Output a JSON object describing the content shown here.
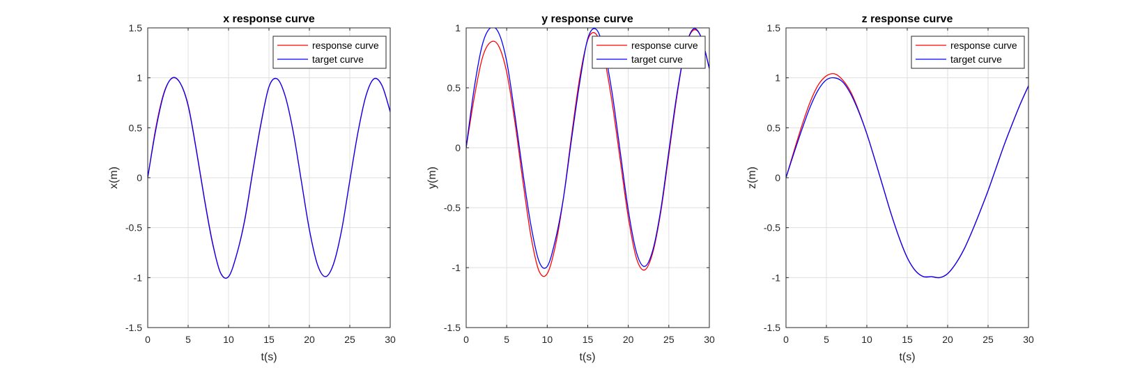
{
  "chart_data": [
    {
      "type": "line",
      "title": "x response curve",
      "xlabel": "t(s)",
      "ylabel": "x(m)",
      "xlim": [
        0,
        30
      ],
      "ylim": [
        -1.5,
        1.5
      ],
      "xticks": [
        0,
        5,
        10,
        15,
        20,
        25,
        30
      ],
      "yticks": [
        -1.5,
        -1,
        -0.5,
        0,
        0.5,
        1,
        1.5
      ],
      "grid": true,
      "legend_position": "top-right",
      "series": [
        {
          "name": "response curve",
          "color": "#ff0000",
          "x": [
            0,
            1,
            2,
            3,
            4,
            5,
            6,
            7,
            8,
            9,
            10,
            11,
            12,
            13,
            14,
            15,
            16,
            17,
            18,
            19,
            20,
            21,
            22,
            23,
            24,
            25,
            26,
            27,
            28,
            29,
            30
          ],
          "y": [
            0.0,
            0.5,
            0.85,
            0.995,
            0.95,
            0.73,
            0.29,
            -0.2,
            -0.64,
            -0.95,
            -0.99,
            -0.77,
            -0.43,
            0.06,
            0.53,
            0.91,
            0.99,
            0.82,
            0.46,
            -0.03,
            -0.52,
            -0.87,
            -0.99,
            -0.86,
            -0.52,
            -0.03,
            0.45,
            0.82,
            0.99,
            0.92,
            0.66
          ]
        },
        {
          "name": "target curve",
          "color": "#0000ff",
          "x": [
            0,
            1,
            2,
            3,
            4,
            5,
            6,
            7,
            8,
            9,
            10,
            11,
            12,
            13,
            14,
            15,
            16,
            17,
            18,
            19,
            20,
            21,
            22,
            23,
            24,
            25,
            26,
            27,
            28,
            29,
            30
          ],
          "y": [
            0.0,
            0.48,
            0.84,
            0.998,
            0.95,
            0.72,
            0.28,
            -0.21,
            -0.65,
            -0.95,
            -0.99,
            -0.77,
            -0.42,
            0.07,
            0.54,
            0.91,
            0.99,
            0.82,
            0.46,
            -0.03,
            -0.52,
            -0.87,
            -0.99,
            -0.86,
            -0.52,
            -0.03,
            0.45,
            0.82,
            0.99,
            0.92,
            0.66
          ]
        }
      ]
    },
    {
      "type": "line",
      "title": "y response curve",
      "xlabel": "t(s)",
      "ylabel": "y(m)",
      "xlim": [
        0,
        30
      ],
      "ylim": [
        -1.5,
        1
      ],
      "xticks": [
        0,
        5,
        10,
        15,
        20,
        25,
        30
      ],
      "yticks": [
        -1.5,
        -1,
        -0.5,
        0,
        0.5,
        1
      ],
      "grid": true,
      "legend_position": "top-right",
      "series": [
        {
          "name": "response curve",
          "color": "#ff0000",
          "x": [
            0,
            1,
            2,
            3,
            4,
            5,
            6,
            7,
            8,
            9,
            10,
            11,
            12,
            13,
            14,
            15,
            16,
            17,
            18,
            19,
            20,
            21,
            22,
            23,
            24,
            25,
            26,
            27,
            28,
            29,
            30
          ],
          "y": [
            0.0,
            0.42,
            0.75,
            0.88,
            0.85,
            0.63,
            0.22,
            -0.28,
            -0.74,
            -1.03,
            -1.05,
            -0.82,
            -0.42,
            0.1,
            0.58,
            0.9,
            0.95,
            0.76,
            0.38,
            -0.1,
            -0.58,
            -0.92,
            -1.02,
            -0.88,
            -0.54,
            -0.06,
            0.43,
            0.82,
            0.98,
            0.92,
            0.66
          ]
        },
        {
          "name": "target curve",
          "color": "#0000ff",
          "x": [
            0,
            1,
            2,
            3,
            4,
            5,
            6,
            7,
            8,
            9,
            10,
            11,
            12,
            13,
            14,
            15,
            16,
            17,
            18,
            19,
            20,
            21,
            22,
            23,
            24,
            25,
            26,
            27,
            28,
            29,
            30
          ],
          "y": [
            0.0,
            0.5,
            0.86,
            1.0,
            0.96,
            0.72,
            0.28,
            -0.21,
            -0.65,
            -0.95,
            -0.99,
            -0.77,
            -0.42,
            0.07,
            0.54,
            0.91,
            0.99,
            0.82,
            0.46,
            -0.03,
            -0.52,
            -0.87,
            -0.99,
            -0.86,
            -0.52,
            -0.03,
            0.45,
            0.82,
            0.99,
            0.92,
            0.66
          ]
        }
      ]
    },
    {
      "type": "line",
      "title": "z response curve",
      "xlabel": "t(s)",
      "ylabel": "z(m)",
      "xlim": [
        0,
        30
      ],
      "ylim": [
        -1.5,
        1.5
      ],
      "xticks": [
        0,
        5,
        10,
        15,
        20,
        25,
        30
      ],
      "yticks": [
        -1.5,
        -1,
        -0.5,
        0,
        0.5,
        1,
        1.5
      ],
      "grid": true,
      "legend_position": "top-right",
      "series": [
        {
          "name": "response curve",
          "color": "#ff0000",
          "x": [
            0,
            1,
            2,
            3,
            4,
            5,
            6,
            7,
            8,
            9,
            10,
            11,
            12,
            13,
            14,
            15,
            16,
            17,
            18,
            19,
            20,
            21,
            22,
            23,
            24,
            25,
            26,
            27,
            28,
            29,
            30
          ],
          "y": [
            0.0,
            0.27,
            0.53,
            0.76,
            0.93,
            1.02,
            1.04,
            0.98,
            0.86,
            0.67,
            0.44,
            0.18,
            -0.09,
            -0.36,
            -0.6,
            -0.8,
            -0.93,
            -0.99,
            -0.99,
            -1.0,
            -0.96,
            -0.86,
            -0.72,
            -0.54,
            -0.34,
            -0.13,
            0.1,
            0.33,
            0.54,
            0.74,
            0.92
          ]
        },
        {
          "name": "target curve",
          "color": "#0000ff",
          "x": [
            0,
            1,
            2,
            3,
            4,
            5,
            6,
            7,
            8,
            9,
            10,
            11,
            12,
            13,
            14,
            15,
            16,
            17,
            18,
            19,
            20,
            21,
            22,
            23,
            24,
            25,
            26,
            27,
            28,
            29,
            30
          ],
          "y": [
            0.0,
            0.25,
            0.49,
            0.71,
            0.88,
            0.98,
            1.0,
            0.96,
            0.84,
            0.66,
            0.44,
            0.18,
            -0.09,
            -0.36,
            -0.6,
            -0.8,
            -0.93,
            -0.99,
            -0.99,
            -1.0,
            -0.96,
            -0.86,
            -0.72,
            -0.54,
            -0.34,
            -0.13,
            0.1,
            0.33,
            0.54,
            0.74,
            0.92
          ]
        }
      ]
    }
  ]
}
